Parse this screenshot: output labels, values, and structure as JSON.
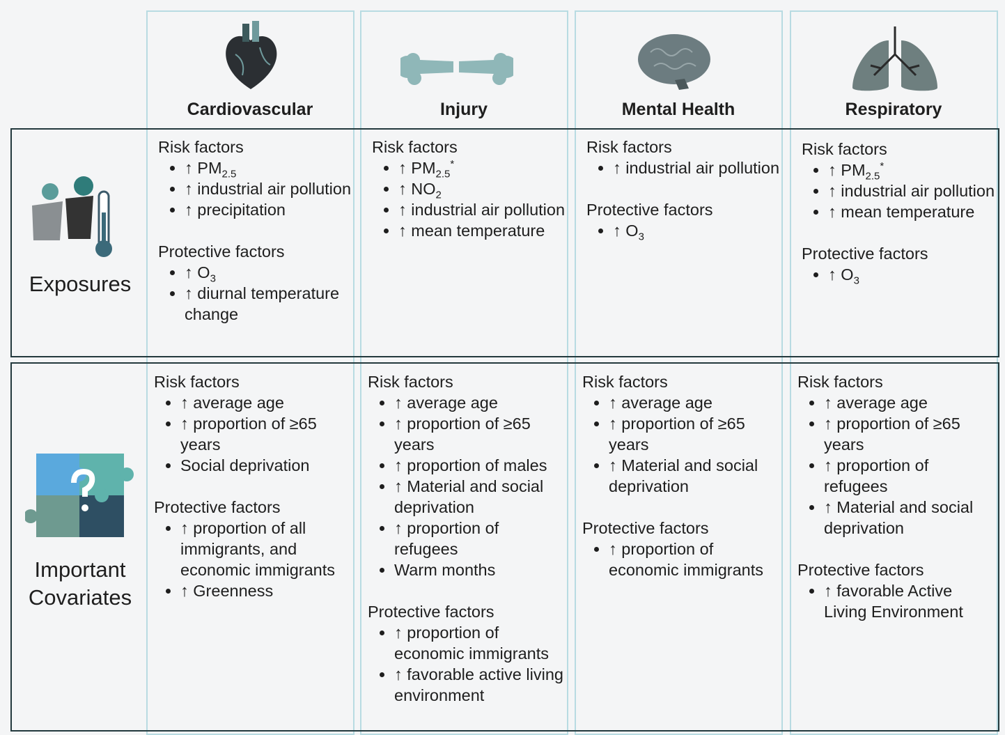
{
  "columns": [
    {
      "title": "Cardiovascular"
    },
    {
      "title": "Injury"
    },
    {
      "title": "Mental Health"
    },
    {
      "title": "Respiratory"
    }
  ],
  "rows": [
    {
      "label": "Exposures",
      "cells": [
        {
          "groups": [
            {
              "heading": "Risk factors",
              "items": [
                {
                  "text": "↑ PM",
                  "sub": "2.5"
                },
                "↑ industrial air pollution",
                "↑ precipitation"
              ]
            },
            {
              "heading": "Protective factors",
              "items": [
                {
                  "text": "↑ O",
                  "sub": "3"
                },
                "↑ diurnal temperature change"
              ]
            }
          ]
        },
        {
          "groups": [
            {
              "heading": "Risk factors",
              "items": [
                {
                  "text": "↑ PM",
                  "sub": "2.5",
                  "sup": "*"
                },
                {
                  "text": "↑ NO",
                  "sub": "2"
                },
                "↑ industrial air pollution",
                "↑ mean temperature"
              ]
            }
          ]
        },
        {
          "groups": [
            {
              "heading": "Risk factors",
              "items": [
                "↑ industrial air pollution"
              ]
            },
            {
              "heading": "Protective factors",
              "items": [
                {
                  "text": "↑ O",
                  "sub": "3"
                }
              ]
            }
          ]
        },
        {
          "groups": [
            {
              "heading": "Risk factors",
              "items": [
                {
                  "text": "↑ PM",
                  "sub": "2.5",
                  "sup": "*"
                },
                "↑ industrial air pollution",
                "↑ mean temperature"
              ]
            },
            {
              "heading": "Protective factors",
              "items": [
                {
                  "text": "↑ O",
                  "sub": "3"
                }
              ]
            }
          ]
        }
      ]
    },
    {
      "label": "Important Covariates",
      "cells": [
        {
          "groups": [
            {
              "heading": "Risk factors",
              "items": [
                "↑ average age",
                "↑ proportion of ≥65 years",
                "Social deprivation"
              ]
            },
            {
              "heading": "Protective factors",
              "items": [
                "↑ proportion of all immigrants, and economic immigrants",
                "↑ Greenness"
              ]
            }
          ]
        },
        {
          "groups": [
            {
              "heading": "Risk factors",
              "items": [
                "↑ average age",
                "↑ proportion of ≥65 years",
                "↑ proportion of males",
                "↑ Material and social deprivation",
                "↑ proportion of refugees",
                "Warm months"
              ]
            },
            {
              "heading": "Protective factors",
              "items": [
                "↑ proportion of economic immigrants",
                "↑ favorable active living environment"
              ]
            }
          ]
        },
        {
          "groups": [
            {
              "heading": "Risk factors",
              "items": [
                "↑ average age",
                "↑ proportion of ≥65 years",
                "↑ Material and social deprivation"
              ]
            },
            {
              "heading": "Protective factors",
              "items": [
                "↑ proportion of economic immigrants"
              ]
            }
          ]
        },
        {
          "groups": [
            {
              "heading": "Risk factors",
              "items": [
                "↑ average age",
                "↑ proportion of ≥65 years",
                "↑ proportion of refugees",
                "↑ Material and social deprivation"
              ]
            },
            {
              "heading": "Protective factors",
              "items": [
                "↑ favorable Active Living Environment"
              ]
            }
          ]
        }
      ]
    }
  ]
}
